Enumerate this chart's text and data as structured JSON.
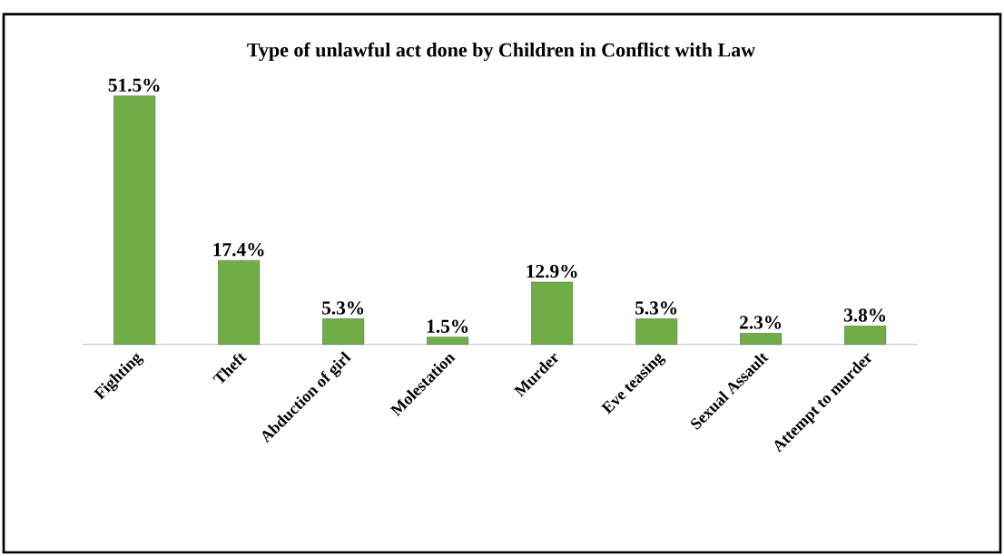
{
  "chart_data": {
    "type": "bar",
    "title": "Type of unlawful act done by Children in Conflict with Law",
    "categories": [
      "Fighting",
      "Theft",
      "Abduction of girl",
      "Molestation",
      "Murder",
      "Eve teasing",
      "Sexual Assault",
      "Attempt to murder"
    ],
    "values": [
      51.5,
      17.4,
      5.3,
      1.5,
      12.9,
      5.3,
      2.3,
      3.8
    ],
    "value_labels": [
      "51.5%",
      "17.4%",
      "5.3%",
      "1.5%",
      "12.9%",
      "5.3%",
      "2.3%",
      "3.8%"
    ],
    "color": "#70ad47"
  }
}
